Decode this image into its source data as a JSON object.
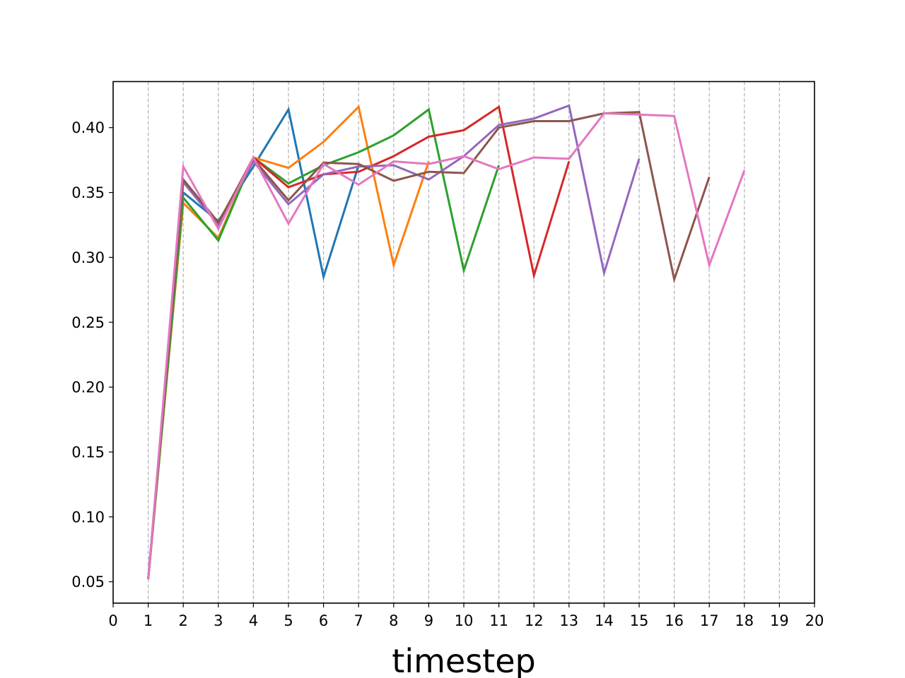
{
  "chart_data": {
    "type": "line",
    "title": "",
    "xlabel": "timestep",
    "ylabel": "",
    "xlim": [
      0,
      20
    ],
    "ylim": [
      0.0335,
      0.4355
    ],
    "xticks": [
      0,
      1,
      2,
      3,
      4,
      5,
      6,
      7,
      8,
      9,
      10,
      11,
      12,
      13,
      14,
      15,
      16,
      17,
      18,
      19,
      20
    ],
    "yticks": [
      0.05,
      0.1,
      0.15,
      0.2,
      0.25,
      0.3,
      0.35,
      0.4
    ],
    "ytick_labels": [
      "0.05",
      "0.10",
      "0.15",
      "0.20",
      "0.25",
      "0.30",
      "0.35",
      "0.40"
    ],
    "grid": "vertical dashed at each x tick",
    "legend": "none",
    "series": [
      {
        "color": "#1f77b4",
        "x": [
          1,
          2,
          3,
          4,
          5,
          6,
          7
        ],
        "y": [
          0.052,
          0.35,
          0.328,
          0.37,
          0.414,
          0.285,
          0.371
        ]
      },
      {
        "color": "#ff7f0e",
        "x": [
          1,
          2,
          3,
          4,
          5,
          6,
          7,
          8,
          9
        ],
        "y": [
          0.052,
          0.342,
          0.315,
          0.377,
          0.369,
          0.389,
          0.416,
          0.294,
          0.374
        ]
      },
      {
        "color": "#2ca02c",
        "x": [
          1,
          2,
          3,
          4,
          5,
          6,
          7,
          8,
          9,
          10,
          11
        ],
        "y": [
          0.052,
          0.346,
          0.313,
          0.377,
          0.357,
          0.371,
          0.381,
          0.394,
          0.414,
          0.29,
          0.371
        ]
      },
      {
        "color": "#d62728",
        "x": [
          1,
          2,
          3,
          4,
          5,
          6,
          7,
          8,
          9,
          10,
          11,
          12,
          13
        ],
        "y": [
          0.052,
          0.36,
          0.326,
          0.377,
          0.354,
          0.364,
          0.366,
          0.378,
          0.393,
          0.398,
          0.416,
          0.286,
          0.374
        ]
      },
      {
        "color": "#9467bd",
        "x": [
          1,
          2,
          3,
          4,
          5,
          6,
          7,
          8,
          9,
          10,
          11,
          12,
          13,
          14,
          15
        ],
        "y": [
          0.052,
          0.358,
          0.325,
          0.374,
          0.341,
          0.364,
          0.37,
          0.371,
          0.36,
          0.378,
          0.402,
          0.407,
          0.417,
          0.288,
          0.376
        ]
      },
      {
        "color": "#8c564b",
        "x": [
          1,
          2,
          3,
          4,
          5,
          6,
          7,
          8,
          9,
          10,
          11,
          12,
          13,
          14,
          15,
          16,
          17
        ],
        "y": [
          0.052,
          0.36,
          0.327,
          0.376,
          0.344,
          0.373,
          0.372,
          0.359,
          0.366,
          0.365,
          0.4,
          0.405,
          0.405,
          0.411,
          0.412,
          0.283,
          0.362
        ]
      },
      {
        "color": "#e377c2",
        "x": [
          1,
          2,
          3,
          4,
          5,
          6,
          7,
          8,
          9,
          10,
          11,
          12,
          13,
          14,
          15,
          16,
          17,
          18
        ],
        "y": [
          0.052,
          0.37,
          0.322,
          0.377,
          0.326,
          0.372,
          0.356,
          0.374,
          0.372,
          0.378,
          0.368,
          0.377,
          0.376,
          0.411,
          0.41,
          0.409,
          0.294,
          0.367
        ]
      }
    ]
  }
}
